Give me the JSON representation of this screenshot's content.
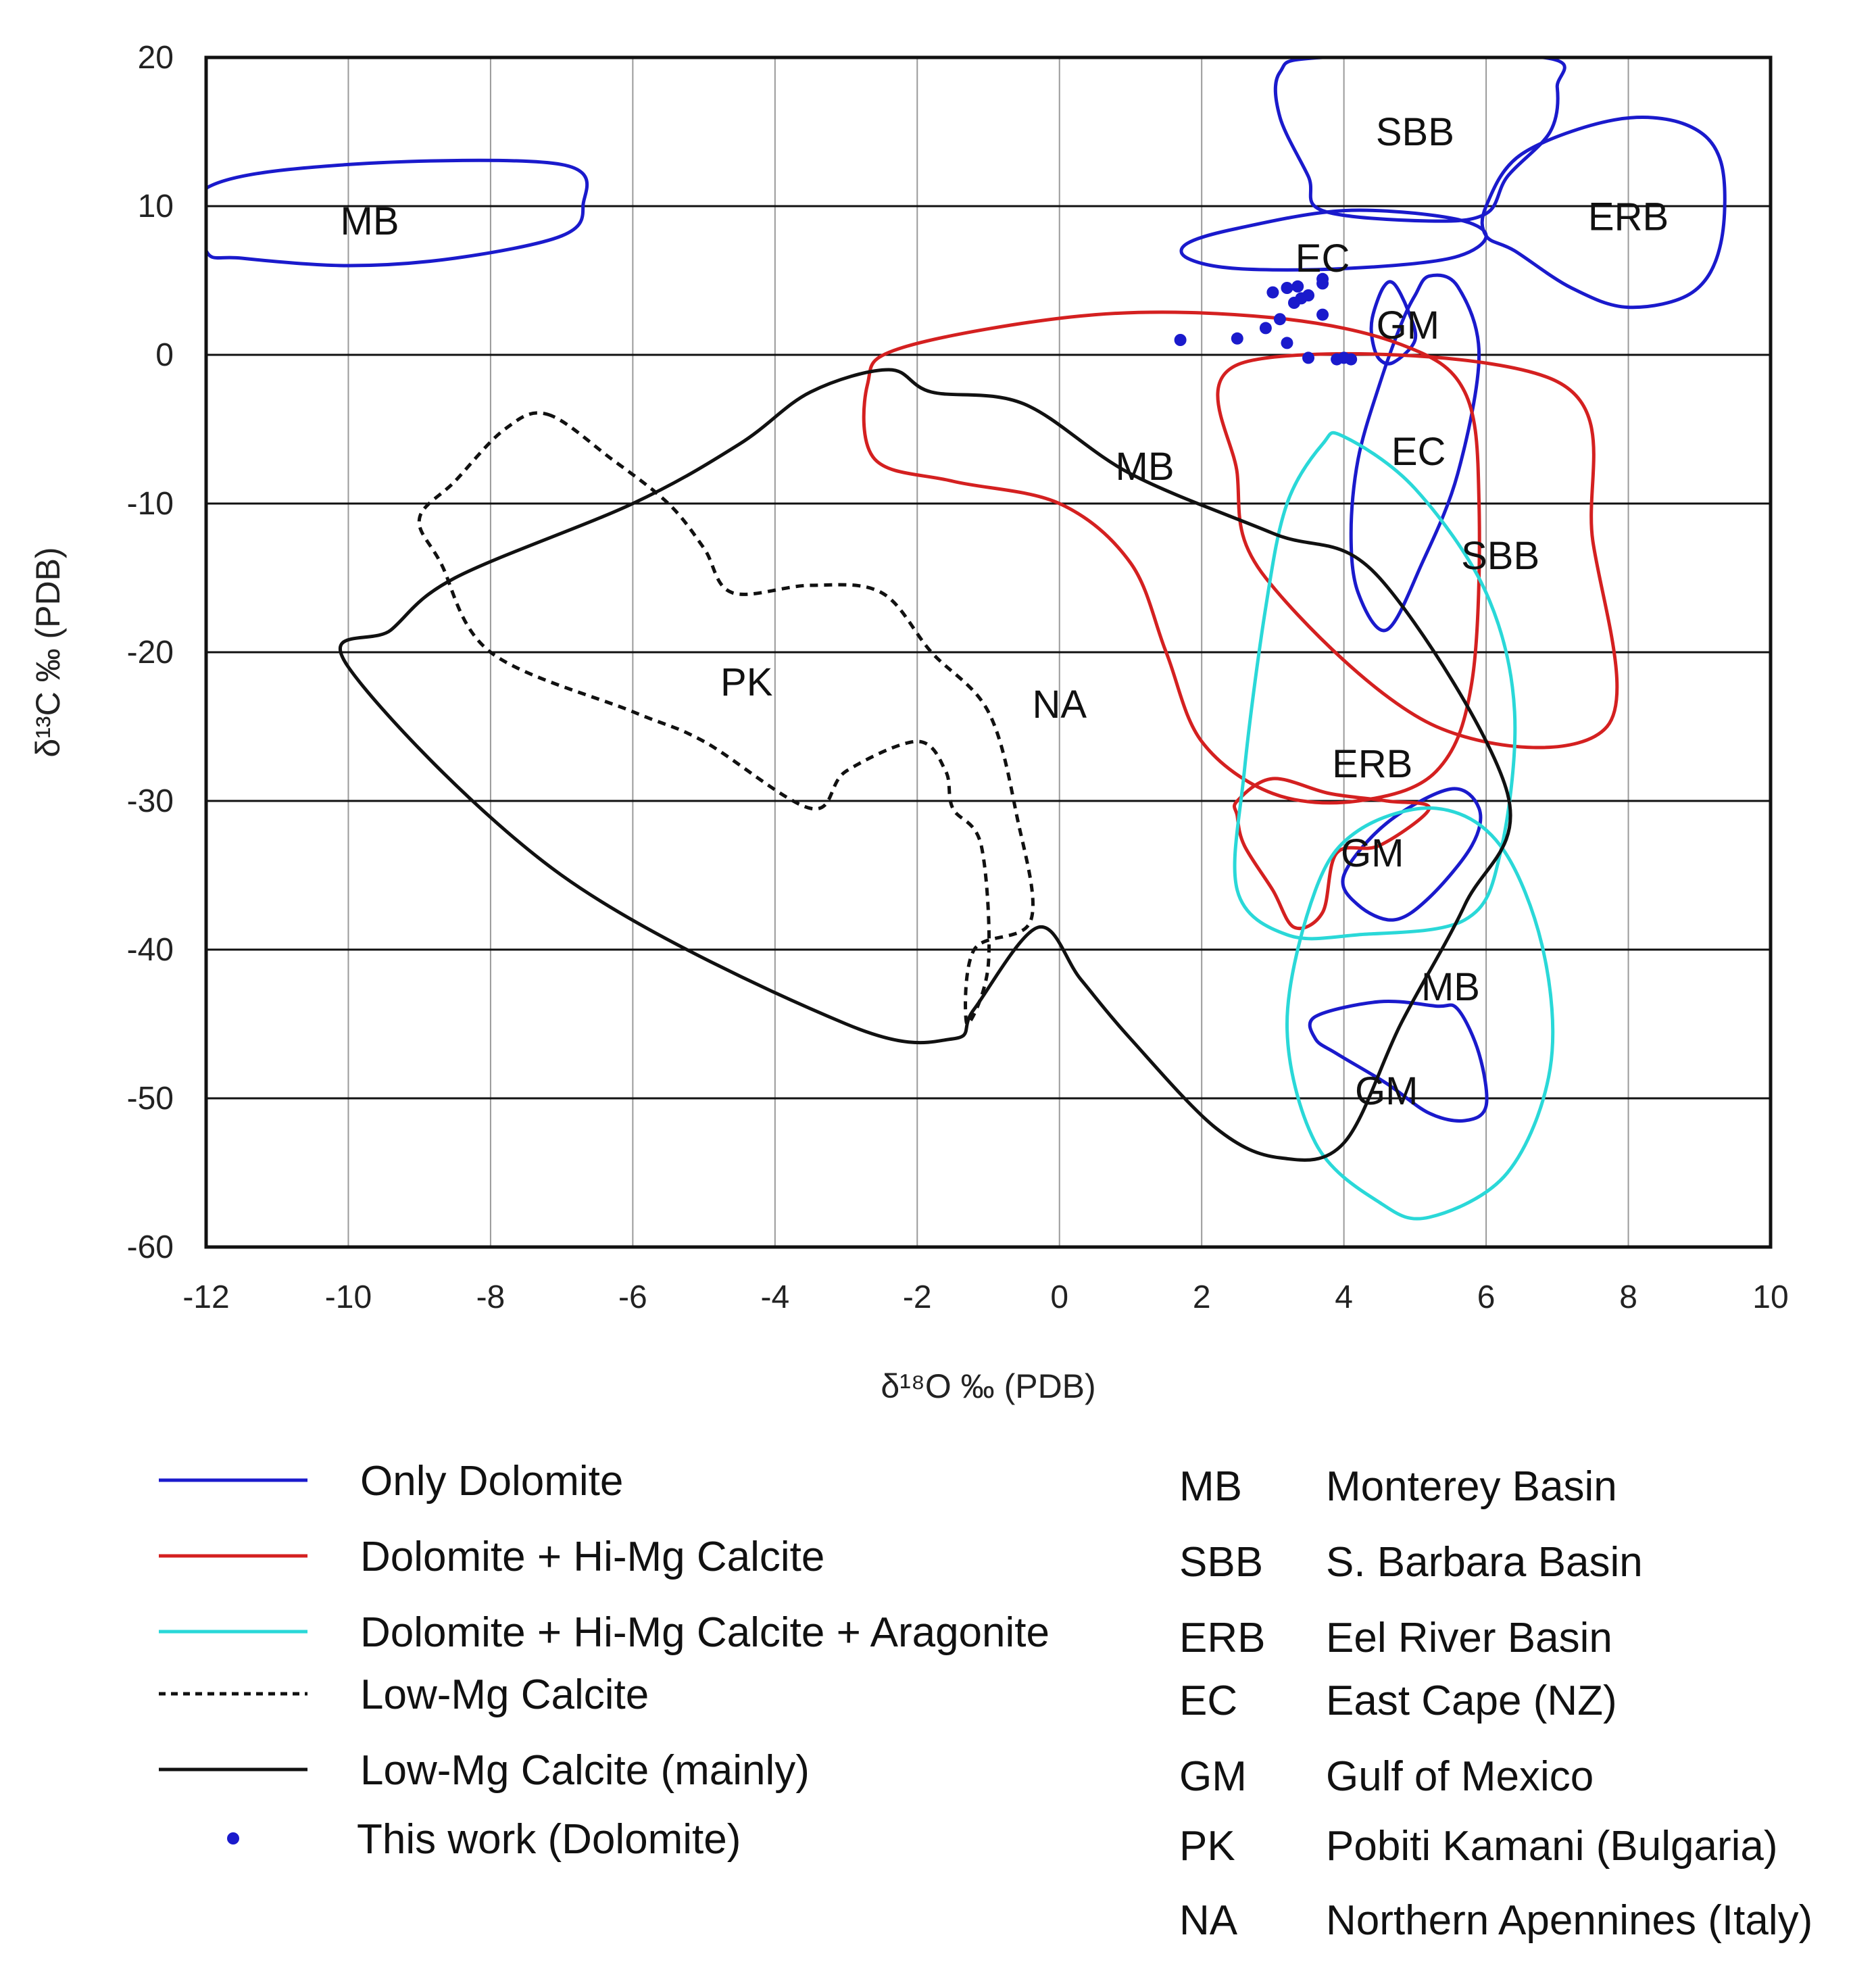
{
  "chart_data": {
    "type": "scatter",
    "xlabel": "δ¹⁸O ‰ (PDB)",
    "ylabel": "δ¹³C ‰ (PDB)",
    "xlim": [
      -12,
      10
    ],
    "ylim": [
      -60,
      20
    ],
    "x_ticks": [
      "-12",
      "-10",
      "-8",
      "-6",
      "-4",
      "-2",
      "0",
      "2",
      "4",
      "6",
      "8",
      "10"
    ],
    "y_ticks": [
      "20",
      "10",
      "0",
      "-10",
      "-20",
      "-30",
      "-40",
      "-50",
      "-60"
    ],
    "grid": true,
    "colors": {
      "only_dolomite": "#1a1acc",
      "dolomite_himg": "#d42020",
      "dolomite_himg_arag": "#2ad8d8",
      "low_mg": "#111111",
      "points": "#1a1acc"
    },
    "regions": [
      {
        "key": "only_dolomite",
        "label": "MB",
        "style": "solid",
        "points": [
          [
            -12,
            11.2
          ],
          [
            -10,
            12.8
          ],
          [
            -7,
            12.8
          ],
          [
            -6.7,
            10
          ],
          [
            -7,
            8
          ],
          [
            -8.5,
            6.5
          ],
          [
            -10,
            6
          ],
          [
            -11.5,
            6.5
          ],
          [
            -12,
            7
          ]
        ]
      },
      {
        "key": "only_dolomite",
        "label": "SBB",
        "style": "solid",
        "points": [
          [
            3.1,
            19
          ],
          [
            3.7,
            20
          ],
          [
            6.8,
            20
          ],
          [
            7,
            18
          ],
          [
            6.9,
            15
          ],
          [
            6.3,
            12
          ],
          [
            6,
            9.5
          ],
          [
            5.2,
            9
          ],
          [
            3.7,
            9.7
          ],
          [
            3.5,
            12
          ],
          [
            3.1,
            16
          ]
        ]
      },
      {
        "key": "only_dolomite",
        "label": "ERB",
        "style": "solid",
        "points": [
          [
            6,
            10
          ],
          [
            6.5,
            13.5
          ],
          [
            7.8,
            15.8
          ],
          [
            8.8,
            15.5
          ],
          [
            9.3,
            13
          ],
          [
            9.3,
            7.5
          ],
          [
            8.9,
            4.2
          ],
          [
            8,
            3.2
          ],
          [
            7.2,
            4.5
          ],
          [
            6.4,
            7
          ],
          [
            6,
            8
          ]
        ]
      },
      {
        "key": "only_dolomite",
        "label": "EC",
        "style": "solid",
        "points": [
          [
            1.8,
            7.5
          ],
          [
            2.5,
            8.5
          ],
          [
            4,
            9.7
          ],
          [
            5.5,
            9.2
          ],
          [
            6,
            8
          ],
          [
            5.5,
            6.5
          ],
          [
            4,
            5.8
          ],
          [
            2.5,
            5.8
          ],
          [
            1.8,
            6.5
          ]
        ]
      },
      {
        "key": "only_dolomite",
        "label": "EC",
        "style": "solid",
        "points": [
          [
            5.2,
            5.3
          ],
          [
            5.6,
            4.6
          ],
          [
            5.9,
            0
          ],
          [
            5.6,
            -8
          ],
          [
            5.1,
            -14
          ],
          [
            4.6,
            -18.5
          ],
          [
            4.2,
            -16
          ],
          [
            4.1,
            -12
          ],
          [
            4.2,
            -7
          ],
          [
            4.5,
            -2
          ],
          [
            4.8,
            2
          ],
          [
            5.0,
            4
          ]
        ]
      },
      {
        "key": "only_dolomite",
        "label": "GM",
        "style": "solid",
        "points": [
          [
            4.4,
            2.5
          ],
          [
            4.55,
            4.5
          ],
          [
            4.7,
            4.8
          ],
          [
            4.9,
            3
          ],
          [
            5,
            1
          ],
          [
            4.7,
            -0.5
          ],
          [
            4.5,
            -0.3
          ],
          [
            4.4,
            1
          ]
        ]
      },
      {
        "key": "only_dolomite",
        "label": "GM",
        "style": "solid",
        "points": [
          [
            4,
            -35
          ],
          [
            4.6,
            -31.5
          ],
          [
            5.5,
            -29.2
          ],
          [
            5.9,
            -30.5
          ],
          [
            5.8,
            -33
          ],
          [
            5.2,
            -36.5
          ],
          [
            4.7,
            -38
          ],
          [
            4.2,
            -37
          ]
        ]
      },
      {
        "key": "only_dolomite",
        "label": "GM",
        "style": "solid",
        "points": [
          [
            3.6,
            -44.5
          ],
          [
            4.5,
            -43.5
          ],
          [
            5.3,
            -43.8
          ],
          [
            5.6,
            -44
          ],
          [
            5.9,
            -47
          ],
          [
            6,
            -50.5
          ],
          [
            5.7,
            -51.5
          ],
          [
            5.2,
            -51
          ],
          [
            4.6,
            -49
          ],
          [
            3.9,
            -47
          ],
          [
            3.6,
            -46
          ]
        ]
      },
      {
        "key": "dolomite_himg",
        "label": "",
        "style": "solid",
        "points": [
          [
            -2.7,
            -2
          ],
          [
            -2.2,
            0.5
          ],
          [
            0.5,
            2.7
          ],
          [
            3,
            2.5
          ],
          [
            4.8,
            0.7
          ],
          [
            5.7,
            -2.5
          ],
          [
            5.9,
            -10
          ],
          [
            5.8,
            -22
          ],
          [
            5.3,
            -28
          ],
          [
            4.2,
            -30
          ],
          [
            3,
            -29.5
          ],
          [
            2,
            -26
          ],
          [
            1.5,
            -20
          ],
          [
            1,
            -14
          ],
          [
            0,
            -10
          ],
          [
            -1.5,
            -8.5
          ],
          [
            -2.6,
            -7
          ]
        ]
      },
      {
        "key": "dolomite_himg",
        "label": "SBB",
        "style": "solid",
        "points": [
          [
            2.6,
            -0.5
          ],
          [
            7,
            -1.8
          ],
          [
            7.5,
            -12.5
          ],
          [
            7.7,
            -25
          ],
          [
            5.3,
            -25
          ],
          [
            2.9,
            -15
          ],
          [
            2.5,
            -8
          ]
        ]
      },
      {
        "key": "dolomite_himg",
        "label": "ERB",
        "style": "solid",
        "points": [
          [
            2.5,
            -30
          ],
          [
            3,
            -28.5
          ],
          [
            3.8,
            -29.5
          ],
          [
            4.6,
            -30
          ],
          [
            5.2,
            -30.5
          ],
          [
            4.5,
            -33
          ],
          [
            3.9,
            -33.5
          ],
          [
            3.7,
            -37.5
          ],
          [
            3.3,
            -38.5
          ],
          [
            3,
            -36
          ],
          [
            2.6,
            -33
          ],
          [
            2.5,
            -31
          ]
        ]
      },
      {
        "key": "dolomite_himg_arag",
        "label": "",
        "style": "solid",
        "points": [
          [
            4,
            -5.5
          ],
          [
            5,
            -9
          ],
          [
            6,
            -16
          ],
          [
            6.4,
            -24
          ],
          [
            6.2,
            -33.5
          ],
          [
            5.7,
            -38
          ],
          [
            4.2,
            -39
          ],
          [
            3.2,
            -39
          ],
          [
            2.5,
            -36
          ],
          [
            2.6,
            -28
          ],
          [
            2.9,
            -17
          ],
          [
            3.2,
            -10
          ],
          [
            3.7,
            -6
          ]
        ]
      },
      {
        "key": "dolomite_himg_arag",
        "label": "",
        "style": "solid",
        "points": [
          [
            4.2,
            -32
          ],
          [
            5.3,
            -30.5
          ],
          [
            6.2,
            -33
          ],
          [
            6.8,
            -40
          ],
          [
            6.9,
            -48
          ],
          [
            6.3,
            -55
          ],
          [
            5.2,
            -58
          ],
          [
            4.5,
            -57
          ],
          [
            3.6,
            -53
          ],
          [
            3.2,
            -45
          ],
          [
            3.6,
            -36
          ]
        ]
      },
      {
        "key": "low_mg",
        "label": "MB",
        "style": "solid",
        "points": [
          [
            -2.4,
            -1
          ],
          [
            -1.8,
            -2.5
          ],
          [
            -0.5,
            -3.3
          ],
          [
            1,
            -8
          ],
          [
            3,
            -12
          ],
          [
            4.5,
            -15
          ],
          [
            6.3,
            -29.5
          ],
          [
            5.7,
            -37
          ],
          [
            4.8,
            -45
          ],
          [
            4,
            -53
          ],
          [
            3.1,
            -54
          ],
          [
            2.2,
            -52
          ],
          [
            1,
            -46
          ],
          [
            0.3,
            -42
          ],
          [
            -0.3,
            -38.5
          ],
          [
            -1.2,
            -44
          ],
          [
            -1.5,
            -46
          ],
          [
            -3,
            -45
          ],
          [
            -7,
            -35
          ],
          [
            -10,
            -21
          ],
          [
            -9.4,
            -18.5
          ],
          [
            -8.5,
            -15
          ],
          [
            -6,
            -10
          ],
          [
            -4.5,
            -6
          ],
          [
            -3.5,
            -2.5
          ]
        ]
      },
      {
        "key": "low_mg",
        "label": "PK",
        "style": "dashed",
        "points": [
          [
            -7.2,
            -4
          ],
          [
            -6.3,
            -7
          ],
          [
            -5.5,
            -10
          ],
          [
            -5,
            -13
          ],
          [
            -4.6,
            -16
          ],
          [
            -3.5,
            -15.5
          ],
          [
            -2.5,
            -16
          ],
          [
            -1.8,
            -20
          ],
          [
            -1,
            -24
          ],
          [
            -0.6,
            -31
          ],
          [
            -0.4,
            -38
          ],
          [
            -1.2,
            -40
          ],
          [
            -1.3,
            -45
          ],
          [
            -1,
            -41
          ],
          [
            -1.1,
            -33
          ],
          [
            -1.5,
            -30.5
          ],
          [
            -1.6,
            -28
          ],
          [
            -2,
            -26
          ],
          [
            -3,
            -28
          ],
          [
            -3.5,
            -30.5
          ],
          [
            -5,
            -26
          ],
          [
            -6,
            -24
          ],
          [
            -8,
            -20
          ],
          [
            -8.7,
            -14
          ],
          [
            -9,
            -11
          ],
          [
            -8.5,
            -8.5
          ],
          [
            -7.8,
            -5
          ]
        ]
      }
    ],
    "region_labels": [
      {
        "text": "MB",
        "x": -9.7,
        "y": 9
      },
      {
        "text": "SBB",
        "x": 5,
        "y": 15
      },
      {
        "text": "ERB",
        "x": 8,
        "y": 9.3
      },
      {
        "text": "EC",
        "x": 3.7,
        "y": 6.5
      },
      {
        "text": "GM",
        "x": 4.9,
        "y": 2
      },
      {
        "text": "EC",
        "x": 5.05,
        "y": -6.5
      },
      {
        "text": "MB",
        "x": 1.2,
        "y": -7.5
      },
      {
        "text": "SBB",
        "x": 6.2,
        "y": -13.5
      },
      {
        "text": "PK",
        "x": -4.4,
        "y": -22
      },
      {
        "text": "NA",
        "x": 0,
        "y": -23.5
      },
      {
        "text": "ERB",
        "x": 4.4,
        "y": -27.5
      },
      {
        "text": "GM",
        "x": 4.4,
        "y": -33.5
      },
      {
        "text": "MB",
        "x": 5.5,
        "y": -42.5
      },
      {
        "text": "GM",
        "x": 4.6,
        "y": -49.5
      }
    ],
    "points": [
      {
        "x": 1.7,
        "y": 1
      },
      {
        "x": 2.5,
        "y": 1.1
      },
      {
        "x": 2.9,
        "y": 1.8
      },
      {
        "x": 3,
        "y": 4.2
      },
      {
        "x": 3.1,
        "y": 2.4
      },
      {
        "x": 3.2,
        "y": 4.5
      },
      {
        "x": 3.3,
        "y": 3.5
      },
      {
        "x": 3.35,
        "y": 4.6
      },
      {
        "x": 3.4,
        "y": 3.8
      },
      {
        "x": 3.5,
        "y": 4
      },
      {
        "x": 3.7,
        "y": 4.8
      },
      {
        "x": 3.7,
        "y": 5.1
      },
      {
        "x": 3.7,
        "y": 2.7
      },
      {
        "x": 3.2,
        "y": 0.8
      },
      {
        "x": 3.5,
        "y": -0.2
      },
      {
        "x": 3.9,
        "y": -0.3
      },
      {
        "x": 4,
        "y": -0.2
      },
      {
        "x": 4.1,
        "y": -0.3
      }
    ],
    "legend_left": [
      {
        "key": "only_dolomite",
        "label": "Only Dolomite",
        "style": "solid"
      },
      {
        "key": "dolomite_himg",
        "label": "Dolomite + Hi-Mg Calcite",
        "style": "solid"
      },
      {
        "key": "dolomite_himg_arag",
        "label": "Dolomite + Hi-Mg Calcite + Aragonite",
        "style": "solid"
      },
      {
        "key": "low_mg",
        "label": "Low-Mg Calcite",
        "style": "dashed"
      },
      {
        "key": "low_mg",
        "label": "Low-Mg Calcite (mainly)",
        "style": "solid"
      },
      {
        "key": "points",
        "label": "This work (Dolomite)",
        "style": "dot"
      }
    ],
    "legend_right": [
      {
        "abbr": "MB",
        "name": "Monterey Basin"
      },
      {
        "abbr": "SBB",
        "name": "S. Barbara Basin"
      },
      {
        "abbr": "ERB",
        "name": "Eel River Basin"
      },
      {
        "abbr": "EC",
        "name": "East Cape (NZ)"
      },
      {
        "abbr": "GM",
        "name": "Gulf of Mexico"
      },
      {
        "abbr": "PK",
        "name": "Pobiti Kamani (Bulgaria)"
      },
      {
        "abbr": "NA",
        "name": "Northern Apennines (Italy)"
      }
    ]
  }
}
